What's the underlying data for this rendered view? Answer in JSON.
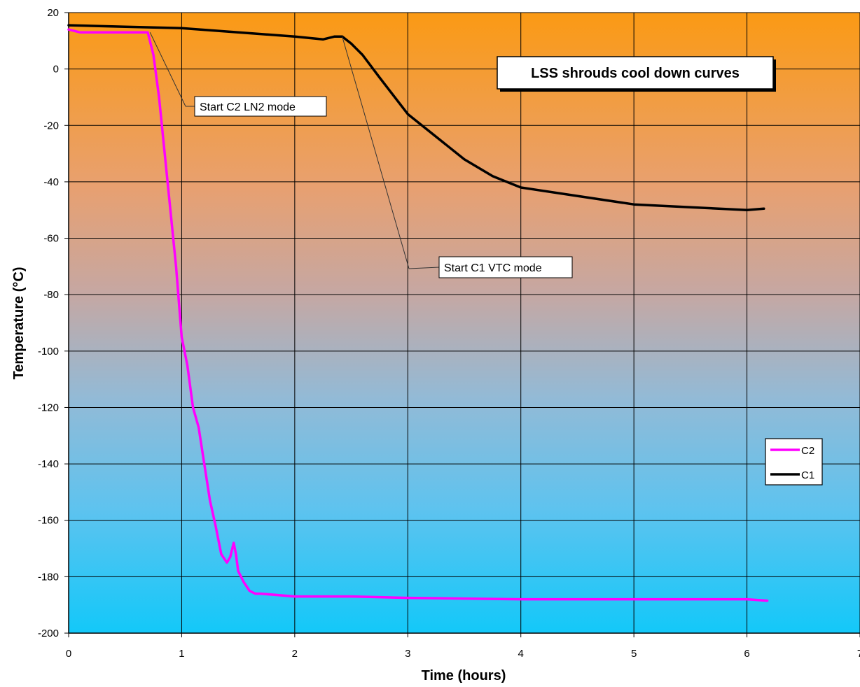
{
  "chart_data": {
    "type": "line",
    "title": "LSS shrouds cool down curves",
    "xlabel": "Time (hours)",
    "ylabel": "Temperature (°C)",
    "xlim": [
      0,
      7
    ],
    "ylim": [
      -200,
      20
    ],
    "x_ticks": [
      "0",
      "1",
      "2",
      "3",
      "4",
      "5",
      "6",
      "7"
    ],
    "y_ticks": [
      "20",
      "0",
      "-20",
      "-40",
      "-60",
      "-80",
      "-100",
      "-120",
      "-140",
      "-160",
      "-180",
      "-200"
    ],
    "grid": true,
    "legend_position": "right",
    "series": [
      {
        "name": "C2",
        "color": "#ff00ff",
        "x": [
          0,
          0.1,
          0.5,
          0.7,
          0.75,
          0.8,
          0.85,
          0.9,
          0.95,
          1.0,
          1.05,
          1.1,
          1.15,
          1.2,
          1.25,
          1.3,
          1.35,
          1.4,
          1.43,
          1.46,
          1.48,
          1.5,
          1.55,
          1.6,
          1.65,
          1.7,
          2.0,
          2.5,
          3.0,
          4.0,
          5.0,
          5.5,
          6.0,
          6.18
        ],
        "y": [
          14,
          13,
          13,
          13,
          5,
          -10,
          -30,
          -50,
          -70,
          -95,
          -105,
          -120,
          -127,
          -140,
          -153,
          -162,
          -172,
          -175,
          -173,
          -168,
          -172,
          -178,
          -182,
          -185,
          -186,
          -186,
          -187,
          -187,
          -187.5,
          -188,
          -188,
          -188,
          -188,
          -188.5
        ]
      },
      {
        "name": "C1",
        "color": "#000000",
        "x": [
          0,
          0.5,
          1.0,
          1.5,
          2.0,
          2.25,
          2.35,
          2.42,
          2.5,
          2.6,
          2.75,
          3.0,
          3.25,
          3.5,
          3.75,
          4.0,
          4.5,
          5.0,
          5.5,
          6.0,
          6.15
        ],
        "y": [
          15.5,
          15,
          14.5,
          13,
          11.5,
          10.5,
          11.5,
          11.5,
          9,
          5,
          -3,
          -16,
          -24,
          -32,
          -38,
          -42,
          -45,
          -48,
          -49,
          -50,
          -49.5
        ]
      }
    ],
    "annotations": [
      {
        "text": "Start C2 LN2 mode",
        "x": 0.72,
        "y": 13
      },
      {
        "text": "Start C1 VTC mode",
        "x": 2.42,
        "y": 11.5
      }
    ]
  }
}
